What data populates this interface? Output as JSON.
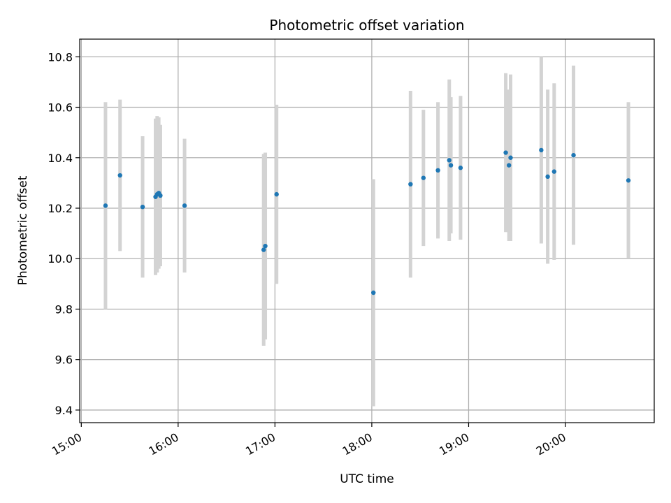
{
  "chart_data": {
    "type": "scatter",
    "title": "Photometric offset variation",
    "xlabel": "UTC time",
    "ylabel": "Photometric offset",
    "xlim": [
      "14:59",
      "20:55"
    ],
    "ylim": [
      9.35,
      10.87
    ],
    "grid": true,
    "x_ticks": [
      "15:00",
      "16:00",
      "17:00",
      "18:00",
      "19:00",
      "20:00"
    ],
    "y_ticks": [
      9.4,
      9.6,
      9.8,
      10.0,
      10.2,
      10.4,
      10.6,
      10.8
    ],
    "series_color": "#1f77b4",
    "errorbar_color": "#d3d3d3",
    "points": [
      {
        "x": "15:15",
        "y": 10.21,
        "yerr": 0.41
      },
      {
        "x": "15:24",
        "y": 10.33,
        "yerr": 0.3
      },
      {
        "x": "15:38",
        "y": 10.205,
        "yerr": 0.28
      },
      {
        "x": "15:46",
        "y": 10.245,
        "yerr": 0.31
      },
      {
        "x": "15:47",
        "y": 10.255,
        "yerr": 0.31
      },
      {
        "x": "15:48",
        "y": 10.26,
        "yerr": 0.3
      },
      {
        "x": "15:49",
        "y": 10.25,
        "yerr": 0.28
      },
      {
        "x": "16:04",
        "y": 10.21,
        "yerr": 0.265
      },
      {
        "x": "16:53",
        "y": 10.035,
        "yerr": 0.38
      },
      {
        "x": "16:54",
        "y": 10.05,
        "yerr": 0.37
      },
      {
        "x": "17:01",
        "y": 10.255,
        "yerr": 0.355
      },
      {
        "x": "18:01",
        "y": 9.865,
        "yerr": 0.45
      },
      {
        "x": "18:24",
        "y": 10.295,
        "yerr": 0.37
      },
      {
        "x": "18:32",
        "y": 10.32,
        "yerr": 0.27
      },
      {
        "x": "18:41",
        "y": 10.35,
        "yerr": 0.27
      },
      {
        "x": "18:48",
        "y": 10.39,
        "yerr": 0.32
      },
      {
        "x": "18:49",
        "y": 10.37,
        "yerr": 0.27
      },
      {
        "x": "18:55",
        "y": 10.36,
        "yerr": 0.285
      },
      {
        "x": "19:23",
        "y": 10.42,
        "yerr": 0.315
      },
      {
        "x": "19:25",
        "y": 10.37,
        "yerr": 0.3
      },
      {
        "x": "19:26",
        "y": 10.4,
        "yerr": 0.33
      },
      {
        "x": "19:45",
        "y": 10.43,
        "yerr": 0.37
      },
      {
        "x": "19:49",
        "y": 10.325,
        "yerr": 0.345
      },
      {
        "x": "19:53",
        "y": 10.345,
        "yerr": 0.35
      },
      {
        "x": "20:05",
        "y": 10.41,
        "yerr": 0.355
      },
      {
        "x": "20:39",
        "y": 10.31,
        "yerr": 0.31
      }
    ]
  }
}
